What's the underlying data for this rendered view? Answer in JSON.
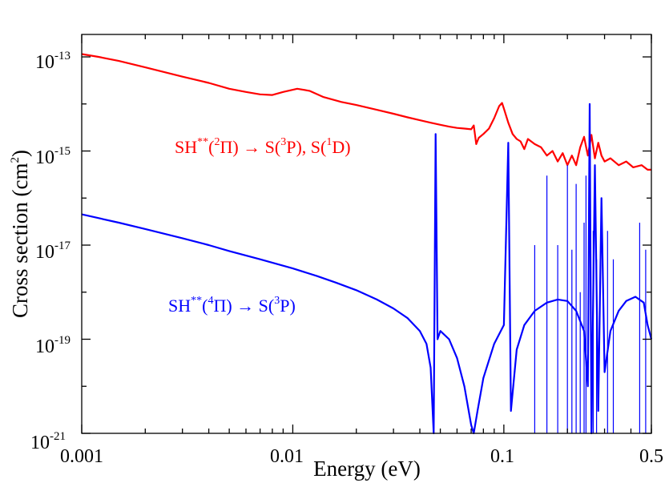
{
  "chart_data": {
    "type": "line",
    "xscale": "log",
    "yscale": "log",
    "xlabel": "Energy (eV)",
    "ylabel": "Cross section",
    "ylabel_unit_base": "cm",
    "ylabel_unit_exp": "2",
    "xlim": [
      0.001,
      0.5
    ],
    "ylim": [
      1e-21,
      3e-13
    ],
    "x_ticks": [
      {
        "value": 0.001,
        "label": "0.001"
      },
      {
        "value": 0.01,
        "label": "0.01"
      },
      {
        "value": 0.1,
        "label": "0.1"
      },
      {
        "value": 0.5,
        "label": "0.5"
      }
    ],
    "y_ticks": [
      {
        "value": 1e-21,
        "base": "10",
        "exp": "-21"
      },
      {
        "value": 1e-19,
        "base": "10",
        "exp": "-19"
      },
      {
        "value": 1e-17,
        "base": "10",
        "exp": "-17"
      },
      {
        "value": 1e-15,
        "base": "10",
        "exp": "-15"
      },
      {
        "value": 1e-13,
        "base": "10",
        "exp": "-13"
      }
    ],
    "series": [
      {
        "name": "SH**(2Π) → S(3P), S(1D)",
        "color": "#ff0000",
        "label": {
          "t1": "SH",
          "s1": "**",
          "t2": "(",
          "s2": "2",
          "t3": "Π) → S(",
          "s3": "3",
          "t4": "P), S(",
          "s4": "1",
          "t5": "D)"
        },
        "points": [
          [
            0.001,
            1.15e-13
          ],
          [
            0.0012,
            1e-13
          ],
          [
            0.0015,
            8.2e-14
          ],
          [
            0.002,
            6e-14
          ],
          [
            0.003,
            3.8e-14
          ],
          [
            0.004,
            2.8e-14
          ],
          [
            0.005,
            2.1e-14
          ],
          [
            0.006,
            1.8e-14
          ],
          [
            0.007,
            1.6e-14
          ],
          [
            0.008,
            1.55e-14
          ],
          [
            0.009,
            1.8e-14
          ],
          [
            0.0105,
            2.1e-14
          ],
          [
            0.012,
            1.9e-14
          ],
          [
            0.014,
            1.4e-14
          ],
          [
            0.017,
            1.1e-14
          ],
          [
            0.02,
            9.5e-15
          ],
          [
            0.025,
            7.5e-15
          ],
          [
            0.03,
            6.2e-15
          ],
          [
            0.035,
            5.2e-15
          ],
          [
            0.04,
            4.5e-15
          ],
          [
            0.045,
            4e-15
          ],
          [
            0.05,
            3.6e-15
          ],
          [
            0.055,
            3.3e-15
          ],
          [
            0.06,
            3.1e-15
          ],
          [
            0.065,
            3e-15
          ],
          [
            0.07,
            2.9e-15
          ],
          [
            0.072,
            3.5e-15
          ],
          [
            0.074,
            1.4e-15
          ],
          [
            0.076,
            1.9e-15
          ],
          [
            0.08,
            2.3e-15
          ],
          [
            0.085,
            3e-15
          ],
          [
            0.09,
            5e-15
          ],
          [
            0.095,
            9e-15
          ],
          [
            0.098,
            1.05e-14
          ],
          [
            0.1,
            8e-15
          ],
          [
            0.105,
            4e-15
          ],
          [
            0.11,
            2.3e-15
          ],
          [
            0.115,
            1.8e-15
          ],
          [
            0.12,
            1.6e-15
          ],
          [
            0.125,
            1.1e-15
          ],
          [
            0.13,
            1.8e-15
          ],
          [
            0.14,
            1.4e-15
          ],
          [
            0.15,
            1.2e-15
          ],
          [
            0.16,
            8e-16
          ],
          [
            0.17,
            1e-15
          ],
          [
            0.18,
            6e-16
          ],
          [
            0.19,
            9e-16
          ],
          [
            0.2,
            5e-16
          ],
          [
            0.21,
            8e-16
          ],
          [
            0.22,
            5e-16
          ],
          [
            0.23,
            1.2e-15
          ],
          [
            0.24,
            2e-15
          ],
          [
            0.25,
            8e-16
          ],
          [
            0.26,
            2.2e-15
          ],
          [
            0.27,
            7e-16
          ],
          [
            0.28,
            1.5e-15
          ],
          [
            0.29,
            8e-16
          ],
          [
            0.3,
            6e-16
          ],
          [
            0.32,
            7e-16
          ],
          [
            0.35,
            5e-16
          ],
          [
            0.38,
            6e-16
          ],
          [
            0.41,
            4.5e-16
          ],
          [
            0.45,
            5e-16
          ],
          [
            0.48,
            4e-16
          ],
          [
            0.5,
            4e-16
          ]
        ]
      },
      {
        "name": "SH**(4Π) → S(3P)",
        "color": "#0000ff",
        "label": {
          "t1": "SH",
          "s1": "**",
          "t2": "(",
          "s2": "4",
          "t3": "Π) → S(",
          "s3": "3",
          "t4": "P)"
        },
        "points": [
          [
            0.001,
            4.5e-17
          ],
          [
            0.0015,
            3e-17
          ],
          [
            0.002,
            2.2e-17
          ],
          [
            0.003,
            1.4e-17
          ],
          [
            0.004,
            1e-17
          ],
          [
            0.005,
            7.5e-18
          ],
          [
            0.007,
            5e-18
          ],
          [
            0.01,
            3.2e-18
          ],
          [
            0.013,
            2.2e-18
          ],
          [
            0.016,
            1.6e-18
          ],
          [
            0.02,
            1.1e-18
          ],
          [
            0.025,
            7e-19
          ],
          [
            0.03,
            4.5e-19
          ],
          [
            0.035,
            2.8e-19
          ],
          [
            0.04,
            1.5e-19
          ],
          [
            0.043,
            8e-20
          ],
          [
            0.045,
            2.5e-20
          ],
          [
            0.0465,
            1e-21
          ],
          [
            0.0475,
            2.3e-15
          ],
          [
            0.0485,
            1e-19
          ],
          [
            0.05,
            1.5e-19
          ],
          [
            0.055,
            1e-19
          ],
          [
            0.06,
            4e-20
          ],
          [
            0.065,
            1e-20
          ],
          [
            0.07,
            1.5e-21
          ],
          [
            0.072,
            1e-21
          ],
          [
            0.075,
            3e-21
          ],
          [
            0.08,
            1.5e-20
          ],
          [
            0.09,
            8e-20
          ],
          [
            0.1,
            2e-19
          ],
          [
            0.105,
            1.5e-15
          ],
          [
            0.108,
            3e-21
          ],
          [
            0.115,
            6e-20
          ],
          [
            0.125,
            2e-19
          ],
          [
            0.14,
            4e-19
          ],
          [
            0.16,
            6e-19
          ],
          [
            0.18,
            7e-19
          ],
          [
            0.2,
            6.5e-19
          ],
          [
            0.22,
            4e-19
          ],
          [
            0.24,
            1.5e-19
          ],
          [
            0.25,
            1e-20
          ],
          [
            0.255,
            1e-14
          ],
          [
            0.26,
            1e-21
          ],
          [
            0.27,
            5e-16
          ],
          [
            0.28,
            3e-21
          ],
          [
            0.29,
            1e-16
          ],
          [
            0.3,
            2e-20
          ],
          [
            0.32,
            1.5e-19
          ],
          [
            0.35,
            4e-19
          ],
          [
            0.38,
            6.5e-19
          ],
          [
            0.42,
            8e-19
          ],
          [
            0.46,
            6e-19
          ],
          [
            0.48,
            2e-19
          ],
          [
            0.5,
            1e-19
          ]
        ],
        "resonances": [
          [
            0.14,
            1e-17
          ],
          [
            0.16,
            3e-16
          ],
          [
            0.18,
            1e-17
          ],
          [
            0.2,
            5e-16
          ],
          [
            0.21,
            8e-18
          ],
          [
            0.22,
            2e-16
          ],
          [
            0.23,
            1e-18
          ],
          [
            0.24,
            3e-17
          ],
          [
            0.245,
            3e-16
          ],
          [
            0.265,
            2e-17
          ],
          [
            0.275,
            5e-18
          ],
          [
            0.31,
            2e-17
          ],
          [
            0.33,
            5e-18
          ],
          [
            0.44,
            3e-17
          ],
          [
            0.47,
            8e-18
          ]
        ]
      }
    ]
  }
}
